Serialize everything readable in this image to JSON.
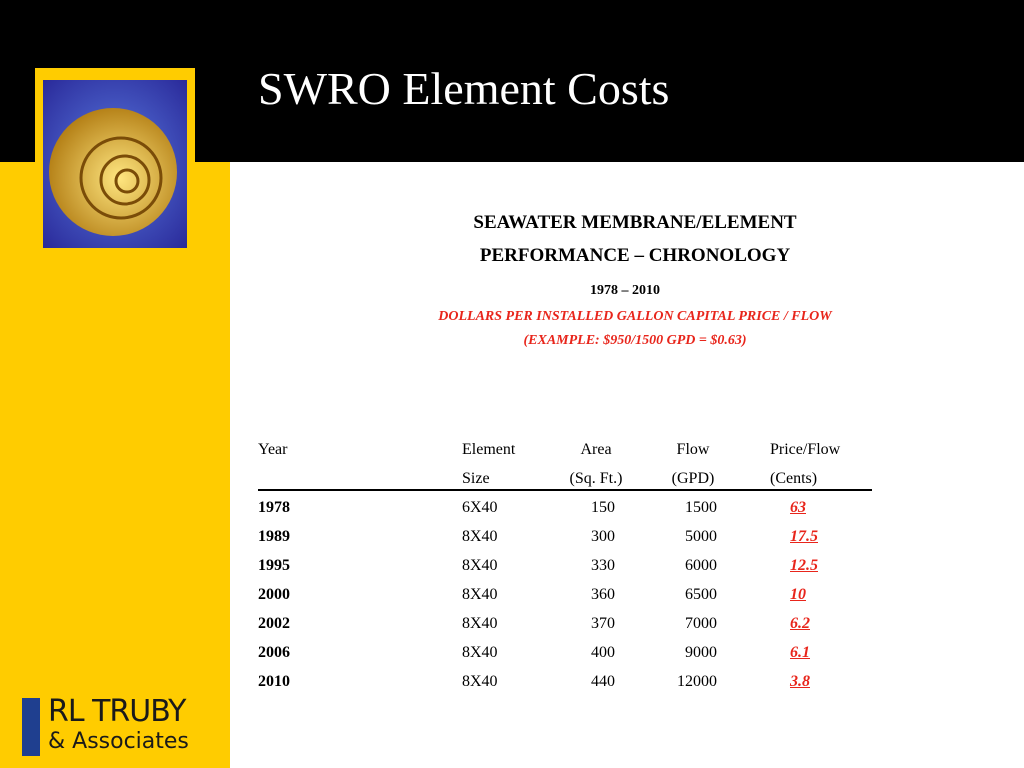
{
  "header": {
    "title": "SWRO Element Costs"
  },
  "heading": {
    "line1": "SEAWATER MEMBRANE/ELEMENT",
    "line2": "PERFORMANCE – CHRONOLOGY",
    "years": "1978 – 2010",
    "note1": "DOLLARS PER INSTALLED GALLON CAPITAL PRICE / FLOW",
    "note2": "(EXAMPLE:  $950/1500 GPD = $0.63)"
  },
  "table": {
    "header": [
      [
        "Year",
        "Element",
        "Area",
        "Flow",
        "Price/Flow"
      ],
      [
        "",
        "Size",
        "(Sq. Ft.)",
        "(GPD)",
        "(Cents)"
      ]
    ],
    "rows": [
      [
        "1978",
        "6X40",
        "150",
        "1500",
        "63"
      ],
      [
        "1989",
        "8X40",
        "300",
        "5000",
        "17.5"
      ],
      [
        "1995",
        "8X40",
        "330",
        "6000",
        "12.5"
      ],
      [
        "2000",
        "8X40",
        "360",
        "6500",
        "10"
      ],
      [
        "2002",
        "8X40",
        "370",
        "7000",
        "6.2"
      ],
      [
        "2006",
        "8X40",
        "400",
        "9000",
        "6.1"
      ],
      [
        "2010",
        "8X40",
        "440",
        "12000",
        "3.8"
      ]
    ]
  },
  "logo": {
    "name": "RL TRUBY",
    "sub": "& Associates"
  }
}
